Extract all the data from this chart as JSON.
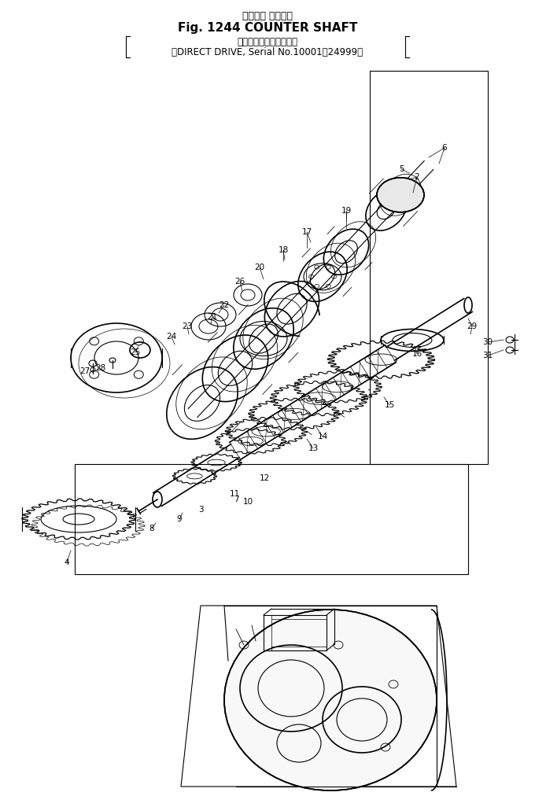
{
  "title_line1": "カウンタ シャフト",
  "title_line2": "Fig. 1244 COUNTER SHAFT",
  "subtitle_line1": "（クラッチ式．適用号機",
  "subtitle_line2": "（DIRECT DRIVE, Serial No.10001～24999）",
  "bg_color": "#ffffff",
  "line_color": "#000000",
  "figsize": [
    6.8,
    10.26
  ],
  "dpi": 100
}
